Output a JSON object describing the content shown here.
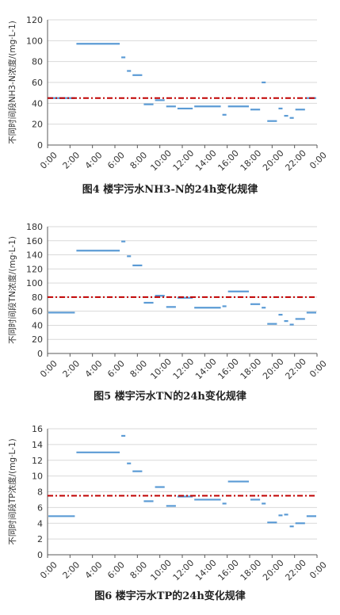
{
  "chart_data": [
    {
      "type": "line",
      "title": "",
      "caption": "图4 楼宇污水NH3-N的24h变化规律",
      "ylabel": "不同时间段NH3-N浓度/(mg·L-1)",
      "ylim": [
        0,
        120
      ],
      "yticks": [
        "0",
        "20",
        "40",
        "60",
        "80",
        "100",
        "120"
      ],
      "xticks": [
        "0:00",
        "2:00",
        "4:00",
        "6:00",
        "8:00",
        "10:00",
        "12:00",
        "14:00",
        "16:00",
        "18:00",
        "20:00",
        "22:00",
        "0:00"
      ],
      "xlim": [
        0,
        24
      ],
      "mean_line": 45,
      "segments": [
        {
          "x0": 0.0,
          "x1": 2.5,
          "y": 45
        },
        {
          "x0": 2.5,
          "x1": 6.5,
          "y": 97
        },
        {
          "x0": 6.5,
          "x1": 7.0,
          "y": 84
        },
        {
          "x0": 7.0,
          "x1": 7.5,
          "y": 71
        },
        {
          "x0": 7.5,
          "x1": 8.5,
          "y": 67
        },
        {
          "x0": 8.5,
          "x1": 9.5,
          "y": 39
        },
        {
          "x0": 9.5,
          "x1": 10.5,
          "y": 43
        },
        {
          "x0": 10.5,
          "x1": 11.5,
          "y": 37
        },
        {
          "x0": 11.5,
          "x1": 13.0,
          "y": 35
        },
        {
          "x0": 13.0,
          "x1": 15.5,
          "y": 37
        },
        {
          "x0": 15.5,
          "x1": 16.0,
          "y": 29
        },
        {
          "x0": 16.0,
          "x1": 18.0,
          "y": 37
        },
        {
          "x0": 18.0,
          "x1": 19.0,
          "y": 34
        },
        {
          "x0": 19.0,
          "x1": 19.5,
          "y": 60
        },
        {
          "x0": 19.5,
          "x1": 20.5,
          "y": 23
        },
        {
          "x0": 20.5,
          "x1": 21.0,
          "y": 35
        },
        {
          "x0": 21.0,
          "x1": 21.5,
          "y": 28
        },
        {
          "x0": 21.5,
          "x1": 22.0,
          "y": 26
        },
        {
          "x0": 22.0,
          "x1": 23.0,
          "y": 34
        },
        {
          "x0": 23.0,
          "x1": 24.0,
          "y": 45
        }
      ]
    },
    {
      "type": "line",
      "title": "",
      "caption": "图5 楼宇污水TN的24h变化规律",
      "ylabel": "不同时间段TN浓度/(mg·L-1)",
      "ylim": [
        0,
        180
      ],
      "yticks": [
        "0",
        "20",
        "40",
        "60",
        "80",
        "100",
        "120",
        "140",
        "160",
        "180"
      ],
      "xticks": [
        "0:00",
        "2:00",
        "4:00",
        "6:00",
        "8:00",
        "10:00",
        "12:00",
        "14:00",
        "16:00",
        "18:00",
        "20:00",
        "22:00",
        "0:00"
      ],
      "xlim": [
        0,
        24
      ],
      "mean_line": 80,
      "segments": [
        {
          "x0": 0.0,
          "x1": 2.5,
          "y": 58
        },
        {
          "x0": 2.5,
          "x1": 6.5,
          "y": 146
        },
        {
          "x0": 6.5,
          "x1": 7.0,
          "y": 159
        },
        {
          "x0": 7.0,
          "x1": 7.5,
          "y": 138
        },
        {
          "x0": 7.5,
          "x1": 8.5,
          "y": 125
        },
        {
          "x0": 8.5,
          "x1": 9.5,
          "y": 72
        },
        {
          "x0": 9.5,
          "x1": 10.5,
          "y": 82
        },
        {
          "x0": 10.5,
          "x1": 11.5,
          "y": 66
        },
        {
          "x0": 11.5,
          "x1": 13.0,
          "y": 79
        },
        {
          "x0": 13.0,
          "x1": 15.5,
          "y": 65
        },
        {
          "x0": 15.5,
          "x1": 16.0,
          "y": 67
        },
        {
          "x0": 16.0,
          "x1": 18.0,
          "y": 88
        },
        {
          "x0": 18.0,
          "x1": 19.0,
          "y": 70
        },
        {
          "x0": 19.0,
          "x1": 19.5,
          "y": 65
        },
        {
          "x0": 19.5,
          "x1": 20.5,
          "y": 42
        },
        {
          "x0": 20.5,
          "x1": 21.0,
          "y": 55
        },
        {
          "x0": 21.0,
          "x1": 21.5,
          "y": 46
        },
        {
          "x0": 21.5,
          "x1": 22.0,
          "y": 41
        },
        {
          "x0": 22.0,
          "x1": 23.0,
          "y": 49
        },
        {
          "x0": 23.0,
          "x1": 24.0,
          "y": 58
        }
      ]
    },
    {
      "type": "line",
      "title": "",
      "caption": "图6 楼宇污水TP的24h变化规律",
      "ylabel": "不同时间段TP浓度/(mg·L-1)",
      "ylim": [
        0,
        16
      ],
      "yticks": [
        "0",
        "2",
        "4",
        "6",
        "8",
        "10",
        "12",
        "14",
        "16"
      ],
      "xticks": [
        "0:00",
        "2:00",
        "4:00",
        "6:00",
        "8:00",
        "10:00",
        "12:00",
        "14:00",
        "16:00",
        "18:00",
        "20:00",
        "22:00",
        "0:00"
      ],
      "xlim": [
        0,
        24
      ],
      "mean_line": 7.5,
      "segments": [
        {
          "x0": 0.0,
          "x1": 2.5,
          "y": 4.9
        },
        {
          "x0": 2.5,
          "x1": 6.5,
          "y": 13.0
        },
        {
          "x0": 6.5,
          "x1": 7.0,
          "y": 15.1
        },
        {
          "x0": 7.0,
          "x1": 7.5,
          "y": 11.6
        },
        {
          "x0": 7.5,
          "x1": 8.5,
          "y": 10.6
        },
        {
          "x0": 8.5,
          "x1": 9.5,
          "y": 6.8
        },
        {
          "x0": 9.5,
          "x1": 10.5,
          "y": 8.6
        },
        {
          "x0": 10.5,
          "x1": 11.5,
          "y": 6.2
        },
        {
          "x0": 11.5,
          "x1": 13.0,
          "y": 7.4
        },
        {
          "x0": 13.0,
          "x1": 15.5,
          "y": 7.0
        },
        {
          "x0": 15.5,
          "x1": 16.0,
          "y": 6.5
        },
        {
          "x0": 16.0,
          "x1": 18.0,
          "y": 9.3
        },
        {
          "x0": 18.0,
          "x1": 19.0,
          "y": 7.0
        },
        {
          "x0": 19.0,
          "x1": 19.5,
          "y": 6.5
        },
        {
          "x0": 19.5,
          "x1": 20.5,
          "y": 4.1
        },
        {
          "x0": 20.5,
          "x1": 21.0,
          "y": 5.0
        },
        {
          "x0": 21.0,
          "x1": 21.5,
          "y": 5.1
        },
        {
          "x0": 21.5,
          "x1": 22.0,
          "y": 3.6
        },
        {
          "x0": 22.0,
          "x1": 23.0,
          "y": 4.0
        },
        {
          "x0": 23.0,
          "x1": 24.0,
          "y": 4.9
        }
      ]
    }
  ],
  "colors": {
    "series": "#5b9bd5",
    "mean_line": "#c00000",
    "axis": "#595959",
    "grid": "#d9d9d9",
    "tick_text": "#333333"
  }
}
